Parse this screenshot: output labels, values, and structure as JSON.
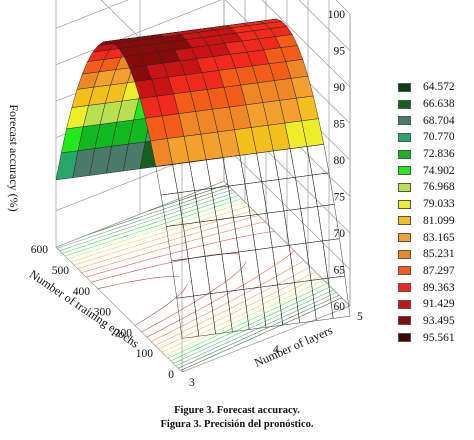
{
  "chart_data": {
    "type": "surface3d",
    "zlabel": "Forecast accuracy (%)",
    "xlabel": "Number of training epochs",
    "ylabel": "Number of layers",
    "x_ticks": [
      "0",
      "100",
      "200",
      "300",
      "400",
      "500",
      "600"
    ],
    "y_ticks": [
      "3",
      "4",
      "5"
    ],
    "z_ticks": [
      "60",
      "65",
      "70",
      "75",
      "80",
      "85",
      "90",
      "95",
      "100"
    ],
    "xlim": [
      0,
      600
    ],
    "ylim": [
      3,
      5
    ],
    "zlim": [
      60,
      100
    ],
    "grid": true,
    "legend_position": "right",
    "legend": [
      {
        "label": "64.572",
        "color": "#0b3d12"
      },
      {
        "label": "66.638",
        "color": "#15601e"
      },
      {
        "label": "68.704",
        "color": "#4a7a6a"
      },
      {
        "label": "70.770",
        "color": "#27a56a"
      },
      {
        "label": "72.836",
        "color": "#12b820"
      },
      {
        "label": "74.902",
        "color": "#22e81c"
      },
      {
        "label": "76.968",
        "color": "#b8e050"
      },
      {
        "label": "79.033",
        "color": "#eded2a"
      },
      {
        "label": "81.099",
        "color": "#f2bf1c"
      },
      {
        "label": "83.165",
        "color": "#f2a02e"
      },
      {
        "label": "85.231",
        "color": "#ef8727"
      },
      {
        "label": "87.297",
        "color": "#f25e18"
      },
      {
        "label": "89.363",
        "color": "#f02a1c"
      },
      {
        "label": "91.429",
        "color": "#c81414"
      },
      {
        "label": "93.495",
        "color": "#880b0b"
      },
      {
        "label": "95.561",
        "color": "#3e0606"
      }
    ]
  },
  "caption": {
    "line1": "Figure 3. Forecast accuracy.",
    "line2": "Figura 3. Precisión del pronóstico."
  }
}
